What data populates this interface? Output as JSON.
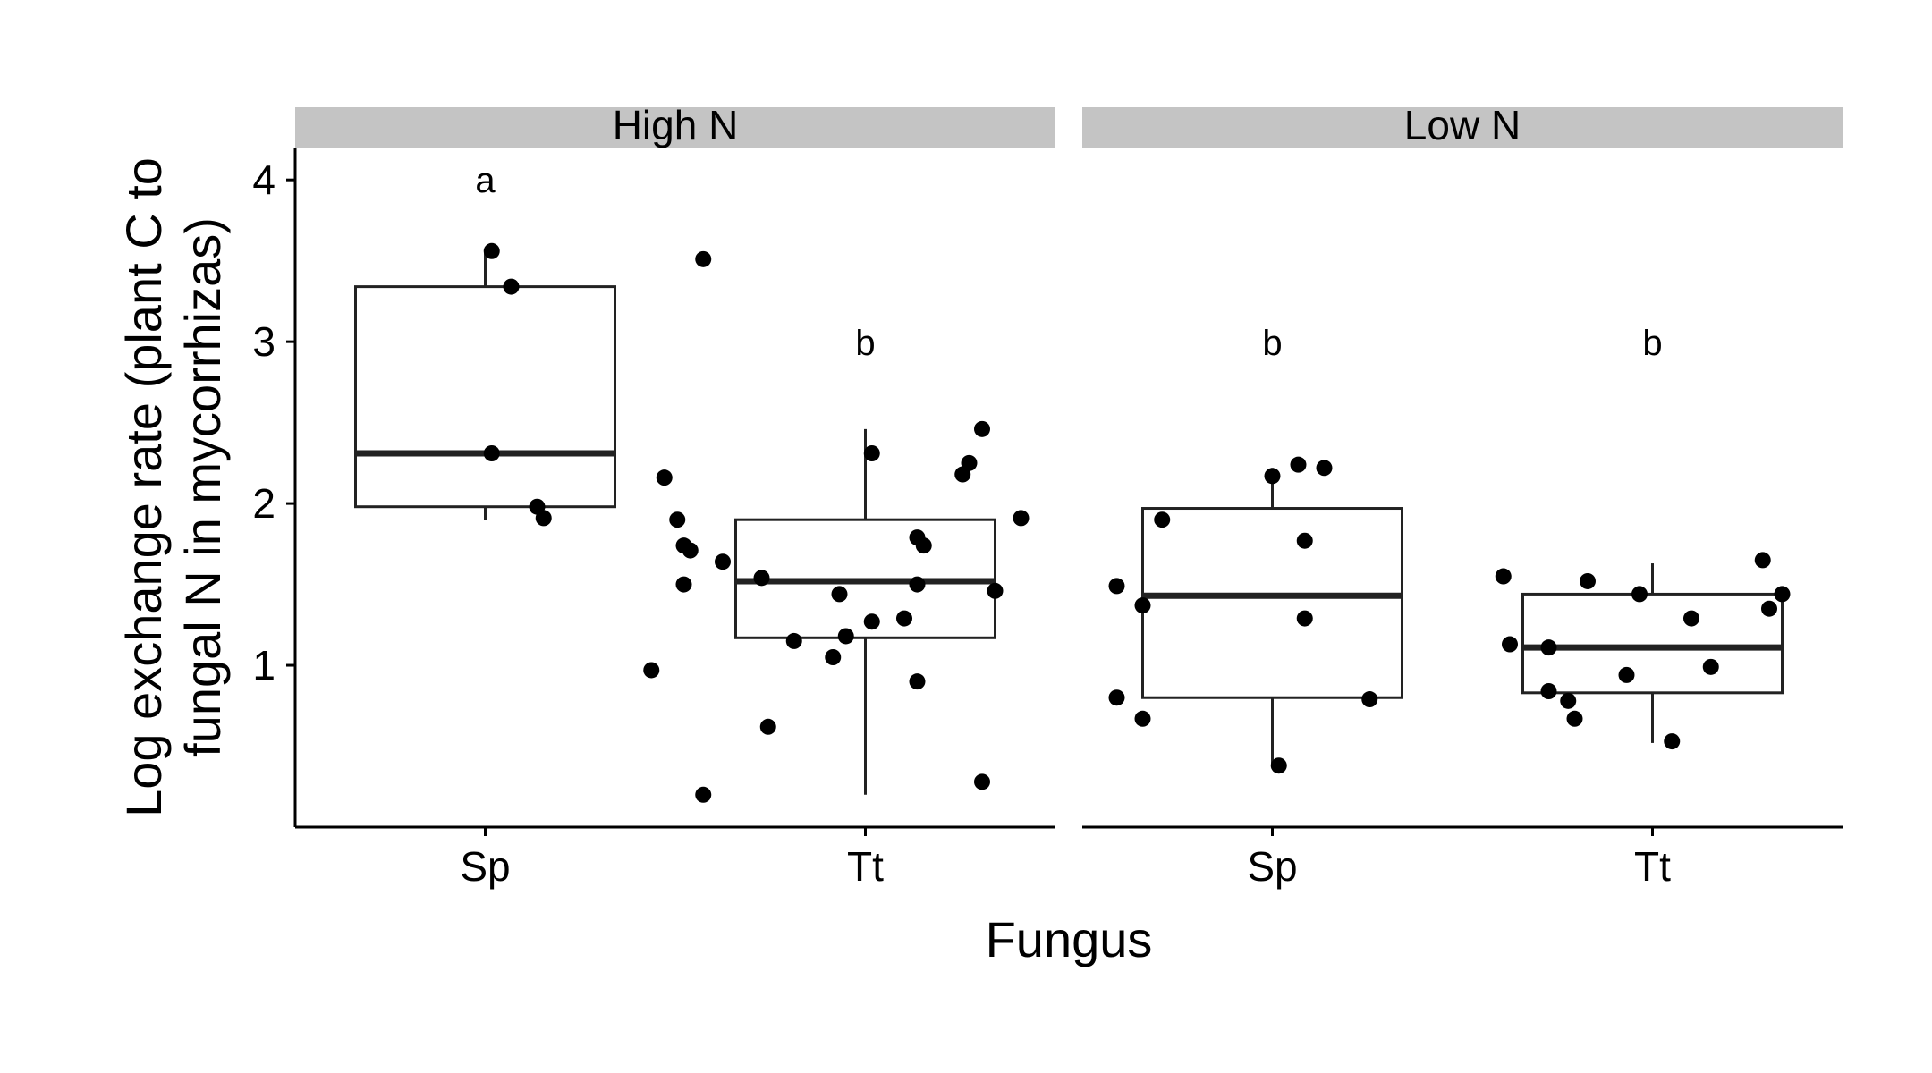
{
  "chart_data": {
    "type": "boxplot",
    "facets": [
      "High N",
      "Low N"
    ],
    "categories": [
      "Sp",
      "Tt"
    ],
    "xlabel": "Fungus",
    "ylabel_lines": [
      "Log exchange rate (plant C to",
      "fungal N in mycorrhizas)"
    ],
    "ylim": [
      0.0,
      4.2
    ],
    "yticks": [
      1,
      2,
      3,
      4
    ],
    "grid": false,
    "panels": [
      {
        "facet": "High N",
        "groups": [
          {
            "category": "Sp",
            "letter": "a",
            "box": {
              "min": 1.9,
              "q1": 1.98,
              "median": 2.31,
              "q3": 3.34,
              "max": 3.56
            },
            "points": [
              [
                0.01,
                3.56
              ],
              [
                0.04,
                3.34
              ],
              [
                0.01,
                2.31
              ],
              [
                0.08,
                1.98
              ],
              [
                0.09,
                1.91
              ]
            ]
          },
          {
            "category": "Tt",
            "letter": "b",
            "box": {
              "min": 0.2,
              "q1": 1.17,
              "median": 1.52,
              "q3": 1.9,
              "max": 2.46
            },
            "points": [
              [
                -0.25,
                3.51
              ],
              [
                0.18,
                2.46
              ],
              [
                0.01,
                2.31
              ],
              [
                0.16,
                2.25
              ],
              [
                -0.31,
                2.16
              ],
              [
                0.15,
                2.18
              ],
              [
                -0.29,
                1.9
              ],
              [
                0.24,
                1.91
              ],
              [
                0.08,
                1.79
              ],
              [
                -0.27,
                1.71
              ],
              [
                -0.28,
                1.74
              ],
              [
                0.09,
                1.74
              ],
              [
                -0.22,
                1.64
              ],
              [
                -0.16,
                1.54
              ],
              [
                -0.28,
                1.5
              ],
              [
                0.08,
                1.5
              ],
              [
                0.2,
                1.46
              ],
              [
                -0.04,
                1.44
              ],
              [
                0.06,
                1.29
              ],
              [
                0.01,
                1.27
              ],
              [
                -0.03,
                1.18
              ],
              [
                -0.11,
                1.15
              ],
              [
                -0.05,
                1.05
              ],
              [
                -0.33,
                0.97
              ],
              [
                0.08,
                0.9
              ],
              [
                -0.15,
                0.62
              ],
              [
                0.18,
                0.28
              ],
              [
                -0.25,
                0.2
              ]
            ]
          }
        ]
      },
      {
        "facet": "Low N",
        "groups": [
          {
            "category": "Sp",
            "letter": "b",
            "box": {
              "min": 0.38,
              "q1": 0.8,
              "median": 1.43,
              "q3": 1.97,
              "max": 2.22
            },
            "points": [
              [
                0.04,
                2.24
              ],
              [
                0.08,
                2.22
              ],
              [
                0.0,
                2.17
              ],
              [
                -0.17,
                1.9
              ],
              [
                0.05,
                1.77
              ],
              [
                -0.24,
                1.49
              ],
              [
                -0.2,
                1.37
              ],
              [
                0.05,
                1.29
              ],
              [
                -0.24,
                0.8
              ],
              [
                0.15,
                0.79
              ],
              [
                -0.2,
                0.67
              ],
              [
                0.01,
                0.38
              ]
            ]
          },
          {
            "category": "Tt",
            "letter": "b",
            "box": {
              "min": 0.52,
              "q1": 0.83,
              "median": 1.11,
              "q3": 1.44,
              "max": 1.63
            },
            "points": [
              [
                0.17,
                1.65
              ],
              [
                -0.23,
                1.55
              ],
              [
                -0.1,
                1.52
              ],
              [
                -0.02,
                1.44
              ],
              [
                0.2,
                1.44
              ],
              [
                0.18,
                1.35
              ],
              [
                0.06,
                1.29
              ],
              [
                -0.22,
                1.13
              ],
              [
                -0.16,
                1.11
              ],
              [
                0.09,
                0.99
              ],
              [
                -0.04,
                0.94
              ],
              [
                -0.16,
                0.84
              ],
              [
                -0.13,
                0.78
              ],
              [
                -0.12,
                0.67
              ],
              [
                0.03,
                0.53
              ]
            ]
          }
        ]
      }
    ]
  }
}
